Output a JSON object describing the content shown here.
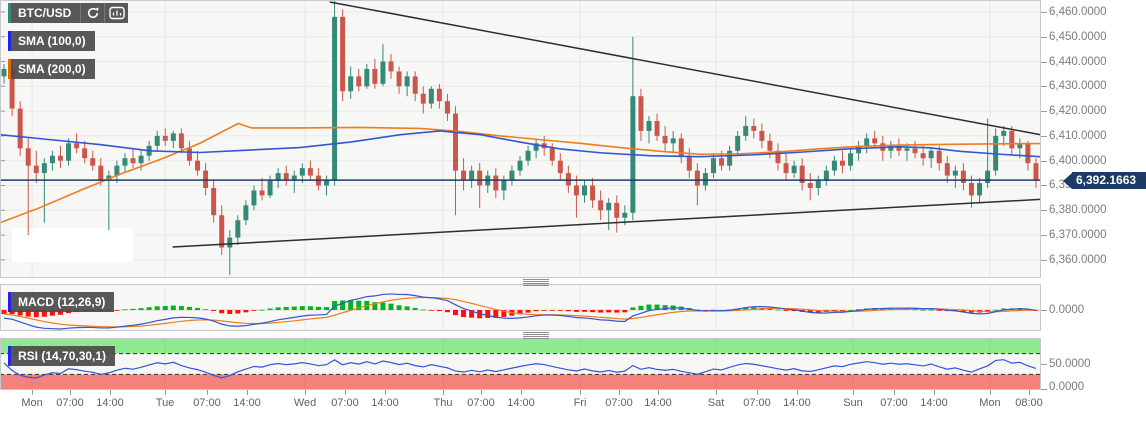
{
  "tiles": {
    "symbol": "BTC/USD"
  },
  "chart_data": {
    "type": "candlestick",
    "title": "BTC/USD",
    "price_axis": {
      "max": 6464.8,
      "min": 6353.1,
      "tick_values": [
        6460,
        6450,
        6440,
        6430,
        6420,
        6410,
        6400,
        6390,
        6380,
        6370,
        6360
      ],
      "tick_labels": [
        "6,460.0000",
        "6,450.0000",
        "6,440.0000",
        "6,430.0000",
        "6,420.0000",
        "6,410.0000",
        "6,400.0000",
        "6,390.0000",
        "6,380.0000",
        "6,370.0000",
        "6,360.0000"
      ]
    },
    "time_axis": {
      "labels": [
        {
          "t": "Mon",
          "x": 0.0308
        },
        {
          "t": "07:00",
          "x": 0.0673
        },
        {
          "t": "14:00",
          "x": 0.1058
        },
        {
          "t": "Tue",
          "x": 0.1587
        },
        {
          "t": "07:00",
          "x": 0.199
        },
        {
          "t": "14:00",
          "x": 0.2375
        },
        {
          "t": "Wed",
          "x": 0.2933
        },
        {
          "t": "07:00",
          "x": 0.3317
        },
        {
          "t": "14:00",
          "x": 0.3702
        },
        {
          "t": "Thu",
          "x": 0.426
        },
        {
          "t": "07:00",
          "x": 0.4625
        },
        {
          "t": "14:00",
          "x": 0.501
        },
        {
          "t": "Fri",
          "x": 0.5577
        },
        {
          "t": "07:00",
          "x": 0.5952
        },
        {
          "t": "14:00",
          "x": 0.6327
        },
        {
          "t": "Sat",
          "x": 0.6885
        },
        {
          "t": "07:00",
          "x": 0.7279
        },
        {
          "t": "14:00",
          "x": 0.7663
        },
        {
          "t": "Sun",
          "x": 0.8202
        },
        {
          "t": "07:00",
          "x": 0.8596
        },
        {
          "t": "14:00",
          "x": 0.8981
        },
        {
          "t": "Mon",
          "x": 0.9519
        },
        {
          "t": "08:00",
          "x": 0.9894
        }
      ]
    },
    "day_gridlines": [
      0.0308,
      0.1587,
      0.2933,
      0.426,
      0.5577,
      0.6885,
      0.8202,
      0.9519
    ],
    "last_price": 6392.1663,
    "last_price_label": "6,392.1663",
    "candles": [
      [
        6434,
        6439,
        6431,
        6437
      ],
      [
        6437,
        6441,
        6418,
        6421
      ],
      [
        6421,
        6424,
        6402,
        6405
      ],
      [
        6405,
        6409,
        6370,
        6398
      ],
      [
        6398,
        6404,
        6391,
        6395
      ],
      [
        6395,
        6401,
        6375,
        6399
      ],
      [
        6399,
        6404,
        6396,
        6402
      ],
      [
        6402,
        6406,
        6397,
        6400
      ],
      [
        6400,
        6409,
        6398,
        6407
      ],
      [
        6407,
        6411,
        6403,
        6405
      ],
      [
        6405,
        6408,
        6399,
        6401
      ],
      [
        6401,
        6404,
        6396,
        6398
      ],
      [
        6398,
        6401,
        6390,
        6392
      ],
      [
        6392,
        6396,
        6372,
        6394
      ],
      [
        6394,
        6400,
        6391,
        6398
      ],
      [
        6398,
        6403,
        6395,
        6401
      ],
      [
        6401,
        6405,
        6397,
        6399
      ],
      [
        6399,
        6404,
        6396,
        6402
      ],
      [
        6402,
        6408,
        6400,
        6406
      ],
      [
        6406,
        6412,
        6404,
        6410
      ],
      [
        6410,
        6413,
        6406,
        6408
      ],
      [
        6408,
        6412,
        6405,
        6411
      ],
      [
        6411,
        6413,
        6403,
        6405
      ],
      [
        6405,
        6408,
        6398,
        6400
      ],
      [
        6400,
        6404,
        6394,
        6396
      ],
      [
        6396,
        6399,
        6386,
        6389
      ],
      [
        6389,
        6392,
        6375,
        6378
      ],
      [
        6378,
        6382,
        6362,
        6365
      ],
      [
        6365,
        6372,
        6354,
        6369
      ],
      [
        6369,
        6378,
        6366,
        6376
      ],
      [
        6376,
        6384,
        6374,
        6382
      ],
      [
        6382,
        6390,
        6380,
        6388
      ],
      [
        6388,
        6393,
        6384,
        6386
      ],
      [
        6386,
        6394,
        6385,
        6392
      ],
      [
        6392,
        6397,
        6389,
        6395
      ],
      [
        6395,
        6398,
        6390,
        6392
      ],
      [
        6392,
        6396,
        6387,
        6394
      ],
      [
        6394,
        6399,
        6391,
        6397
      ],
      [
        6397,
        6400,
        6392,
        6394
      ],
      [
        6394,
        6397,
        6388,
        6390
      ],
      [
        6390,
        6394,
        6386,
        6392
      ],
      [
        6392,
        6465,
        6390,
        6458
      ],
      [
        6458,
        6461,
        6424,
        6428
      ],
      [
        6428,
        6438,
        6425,
        6434
      ],
      [
        6434,
        6437,
        6428,
        6430
      ],
      [
        6430,
        6439,
        6429,
        6437
      ],
      [
        6437,
        6441,
        6429,
        6431
      ],
      [
        6431,
        6447,
        6430,
        6440
      ],
      [
        6440,
        6443,
        6433,
        6436
      ],
      [
        6436,
        6438,
        6427,
        6430
      ],
      [
        6430,
        6436,
        6426,
        6434
      ],
      [
        6434,
        6436,
        6424,
        6427
      ],
      [
        6427,
        6430,
        6419,
        6423
      ],
      [
        6423,
        6430,
        6421,
        6429
      ],
      [
        6429,
        6431,
        6421,
        6424
      ],
      [
        6424,
        6427,
        6416,
        6419
      ],
      [
        6419,
        6422,
        6378,
        6396
      ],
      [
        6396,
        6401,
        6388,
        6392
      ],
      [
        6392,
        6398,
        6389,
        6396
      ],
      [
        6396,
        6399,
        6381,
        6390
      ],
      [
        6390,
        6396,
        6387,
        6394
      ],
      [
        6394,
        6397,
        6385,
        6388
      ],
      [
        6388,
        6394,
        6384,
        6392
      ],
      [
        6392,
        6398,
        6390,
        6396
      ],
      [
        6396,
        6402,
        6394,
        6400
      ],
      [
        6400,
        6406,
        6398,
        6404
      ],
      [
        6404,
        6409,
        6401,
        6407
      ],
      [
        6407,
        6410,
        6402,
        6405
      ],
      [
        6405,
        6407,
        6398,
        6400
      ],
      [
        6400,
        6403,
        6392,
        6395
      ],
      [
        6395,
        6398,
        6387,
        6390
      ],
      [
        6390,
        6394,
        6377,
        6386
      ],
      [
        6386,
        6392,
        6383,
        6390
      ],
      [
        6390,
        6393,
        6381,
        6384
      ],
      [
        6384,
        6388,
        6376,
        6380
      ],
      [
        6380,
        6385,
        6372,
        6383
      ],
      [
        6383,
        6386,
        6371,
        6377
      ],
      [
        6377,
        6382,
        6374,
        6379
      ],
      [
        6379,
        6450,
        6376,
        6426
      ],
      [
        6426,
        6429,
        6408,
        6412
      ],
      [
        6412,
        6418,
        6407,
        6416
      ],
      [
        6416,
        6419,
        6408,
        6410
      ],
      [
        6410,
        6414,
        6404,
        6407
      ],
      [
        6407,
        6412,
        6403,
        6409
      ],
      [
        6409,
        6411,
        6399,
        6402
      ],
      [
        6402,
        6405,
        6393,
        6396
      ],
      [
        6396,
        6399,
        6382,
        6390
      ],
      [
        6390,
        6397,
        6388,
        6395
      ],
      [
        6395,
        6403,
        6393,
        6401
      ],
      [
        6401,
        6404,
        6396,
        6398
      ],
      [
        6398,
        6406,
        6396,
        6404
      ],
      [
        6404,
        6412,
        6402,
        6410
      ],
      [
        6410,
        6418,
        6408,
        6414
      ],
      [
        6414,
        6417,
        6409,
        6412
      ],
      [
        6412,
        6415,
        6405,
        6408
      ],
      [
        6408,
        6411,
        6401,
        6404
      ],
      [
        6404,
        6407,
        6396,
        6399
      ],
      [
        6399,
        6403,
        6392,
        6395
      ],
      [
        6395,
        6400,
        6393,
        6398
      ],
      [
        6398,
        6401,
        6388,
        6391
      ],
      [
        6391,
        6395,
        6384,
        6389
      ],
      [
        6389,
        6394,
        6386,
        6392
      ],
      [
        6392,
        6398,
        6390,
        6396
      ],
      [
        6396,
        6402,
        6394,
        6400
      ],
      [
        6400,
        6404,
        6395,
        6398
      ],
      [
        6398,
        6405,
        6396,
        6403
      ],
      [
        6403,
        6408,
        6400,
        6406
      ],
      [
        6406,
        6411,
        6403,
        6409
      ],
      [
        6409,
        6412,
        6405,
        6407
      ],
      [
        6407,
        6410,
        6400,
        6404
      ],
      [
        6404,
        6408,
        6401,
        6406
      ],
      [
        6406,
        6409,
        6402,
        6404
      ],
      [
        6404,
        6407,
        6400,
        6405
      ],
      [
        6405,
        6408,
        6401,
        6403
      ],
      [
        6403,
        6406,
        6398,
        6401
      ],
      [
        6401,
        6405,
        6397,
        6404
      ],
      [
        6404,
        6406,
        6396,
        6399
      ],
      [
        6399,
        6402,
        6391,
        6394
      ],
      [
        6394,
        6398,
        6389,
        6396
      ],
      [
        6396,
        6399,
        6388,
        6391
      ],
      [
        6391,
        6394,
        6381,
        6386
      ],
      [
        6386,
        6393,
        6383,
        6391
      ],
      [
        6391,
        6417,
        6389,
        6396
      ],
      [
        6396,
        6413,
        6394,
        6410
      ],
      [
        6410,
        6414,
        6406,
        6412
      ],
      [
        6412,
        6414,
        6402,
        6405
      ],
      [
        6405,
        6409,
        6401,
        6407
      ],
      [
        6407,
        6408,
        6396,
        6399
      ],
      [
        6399,
        6401,
        6389,
        6392
      ]
    ],
    "sma100": {
      "label": "SMA (100,0)",
      "points": [
        [
          0,
          6410.5
        ],
        [
          0.048,
          6408.5
        ],
        [
          0.096,
          6406.5
        ],
        [
          0.144,
          6404
        ],
        [
          0.192,
          6403.3
        ],
        [
          0.24,
          6404.3
        ],
        [
          0.288,
          6405.3
        ],
        [
          0.337,
          6407.5
        ],
        [
          0.385,
          6410.5
        ],
        [
          0.423,
          6412
        ],
        [
          0.462,
          6410.5
        ],
        [
          0.5,
          6407.5
        ],
        [
          0.538,
          6404.8
        ],
        [
          0.577,
          6403.2
        ],
        [
          0.625,
          6402
        ],
        [
          0.673,
          6401.6
        ],
        [
          0.721,
          6402.3
        ],
        [
          0.769,
          6403.4
        ],
        [
          0.817,
          6404.8
        ],
        [
          0.865,
          6405.6
        ],
        [
          0.894,
          6405.2
        ],
        [
          0.923,
          6403.8
        ],
        [
          0.962,
          6402.6
        ],
        [
          1,
          6401.6
        ]
      ]
    },
    "sma200": {
      "label": "SMA (200,0)",
      "points": [
        [
          0,
          6375
        ],
        [
          0.038,
          6381
        ],
        [
          0.077,
          6388
        ],
        [
          0.115,
          6394.5
        ],
        [
          0.154,
          6400.5
        ],
        [
          0.192,
          6407
        ],
        [
          0.229,
          6415
        ],
        [
          0.242,
          6413.2
        ],
        [
          0.288,
          6413.2
        ],
        [
          0.346,
          6413.4
        ],
        [
          0.404,
          6413
        ],
        [
          0.442,
          6411.8
        ],
        [
          0.481,
          6410
        ],
        [
          0.519,
          6408.5
        ],
        [
          0.558,
          6407
        ],
        [
          0.596,
          6405.3
        ],
        [
          0.635,
          6403.8
        ],
        [
          0.673,
          6402.6
        ],
        [
          0.712,
          6402.8
        ],
        [
          0.75,
          6403.6
        ],
        [
          0.788,
          6404.8
        ],
        [
          0.827,
          6405.8
        ],
        [
          0.865,
          6406.3
        ],
        [
          0.913,
          6406.6
        ],
        [
          0.962,
          6406.8
        ],
        [
          1,
          6406.9
        ]
      ]
    },
    "trendlines": [
      {
        "name": "descending",
        "x1": 0.317,
        "p1": 6464,
        "x2": 1,
        "p2": 6410.5
      },
      {
        "name": "ascending",
        "x1": 0.166,
        "p1": 6365.2,
        "x2": 1,
        "p2": 6384.4
      }
    ],
    "macd": {
      "label": "MACD (12,26,9)",
      "fast": 12,
      "slow": 26,
      "signal": 9,
      "zero_label": "0.0000"
    },
    "rsi": {
      "label": "RSI (14,70,30,1)",
      "period": 14,
      "overbought": 70,
      "oversold": 30,
      "mid_label": "50.0000",
      "zero_label": "0.0000"
    },
    "colors": {
      "up": "#368978",
      "down": "#cb574c",
      "macd_up": "#00b41e",
      "macd_down": "#ff1007",
      "line_blue": "#3356d6",
      "line_orange": "#ed7d1f",
      "price_line": "#1c3c66",
      "trend": "#2e2e2e",
      "zone_green": "#8deb8d",
      "zone_red": "#f4817b",
      "grid": "#e9e9e6",
      "panel_bg": "#f7f7f5",
      "badge_bg": "#1c3c66"
    }
  }
}
